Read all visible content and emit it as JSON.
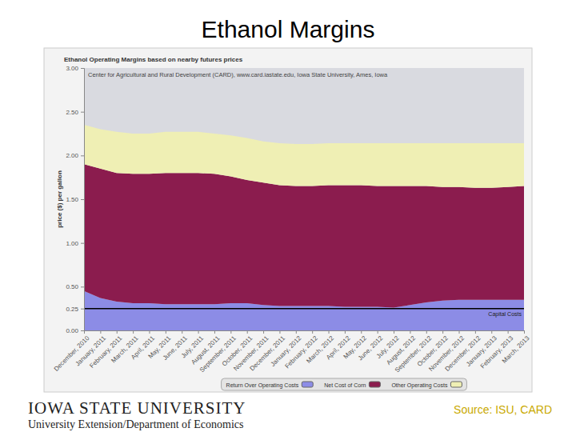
{
  "slide_title": "Ethanol Margins",
  "footer": {
    "wordmark": "IOWA STATE UNIVERSITY",
    "source": "Source: ISU, CARD",
    "department": "University Extension/Department of Economics"
  },
  "chart_data": {
    "type": "area",
    "stacked": true,
    "title": "Ethanol Operating Margins based on nearby futures prices",
    "subtitle": "Center for Agricultural and Rural Development (CARD), www.card.iastate.edu, Iowa State University, Ames, Iowa",
    "y_label": "price ($) per gallon",
    "categories": [
      "December, 2010",
      "January, 2011",
      "February, 2011",
      "March, 2011",
      "April, 2011",
      "May, 2011",
      "June, 2011",
      "July, 2011",
      "August, 2011",
      "September, 2011",
      "October, 2011",
      "November, 2011",
      "December, 2011",
      "January, 2012",
      "February, 2012",
      "March, 2012",
      "April, 2012",
      "May, 2012",
      "June, 2012",
      "July, 2012",
      "August, 2012",
      "September, 2012",
      "October, 2012",
      "November, 2012",
      "December, 2012",
      "January, 2013",
      "February, 2013",
      "March, 2013"
    ],
    "series": [
      {
        "name": "Return Over Operating Costs",
        "color": "#8c8ce6",
        "values": [
          0.45,
          0.37,
          0.33,
          0.31,
          0.31,
          0.3,
          0.3,
          0.3,
          0.3,
          0.31,
          0.31,
          0.29,
          0.28,
          0.28,
          0.28,
          0.28,
          0.27,
          0.27,
          0.27,
          0.26,
          0.29,
          0.32,
          0.34,
          0.35,
          0.35,
          0.35,
          0.35,
          0.35
        ]
      },
      {
        "name": "Net Cost of Corn",
        "color": "#8b1c4e",
        "values": [
          1.45,
          1.48,
          1.47,
          1.48,
          1.48,
          1.5,
          1.5,
          1.5,
          1.49,
          1.45,
          1.41,
          1.4,
          1.38,
          1.37,
          1.37,
          1.38,
          1.39,
          1.39,
          1.38,
          1.39,
          1.36,
          1.33,
          1.3,
          1.29,
          1.28,
          1.28,
          1.29,
          1.3
        ]
      },
      {
        "name": "Other Operating Costs",
        "color": "#efefb4",
        "values": [
          0.45,
          0.45,
          0.47,
          0.46,
          0.46,
          0.47,
          0.47,
          0.47,
          0.46,
          0.47,
          0.48,
          0.47,
          0.48,
          0.48,
          0.48,
          0.48,
          0.48,
          0.48,
          0.49,
          0.49,
          0.49,
          0.49,
          0.5,
          0.5,
          0.51,
          0.51,
          0.5,
          0.49
        ]
      }
    ],
    "ylim": [
      0,
      3
    ],
    "yticks": [
      {
        "value": 0,
        "label": "0.00"
      },
      {
        "value": 0.25,
        "label": "0.25"
      },
      {
        "value": 0.5,
        "label": "0.50"
      },
      {
        "value": 1,
        "label": "1.00"
      },
      {
        "value": 1.5,
        "label": "1.50"
      },
      {
        "value": 2,
        "label": "2.00"
      },
      {
        "value": 2.5,
        "label": "2.50"
      },
      {
        "value": 3,
        "label": "3.00"
      }
    ],
    "annotations": [
      {
        "text": "Capital Costs",
        "y": 0.25
      }
    ],
    "legend": "bottom"
  }
}
